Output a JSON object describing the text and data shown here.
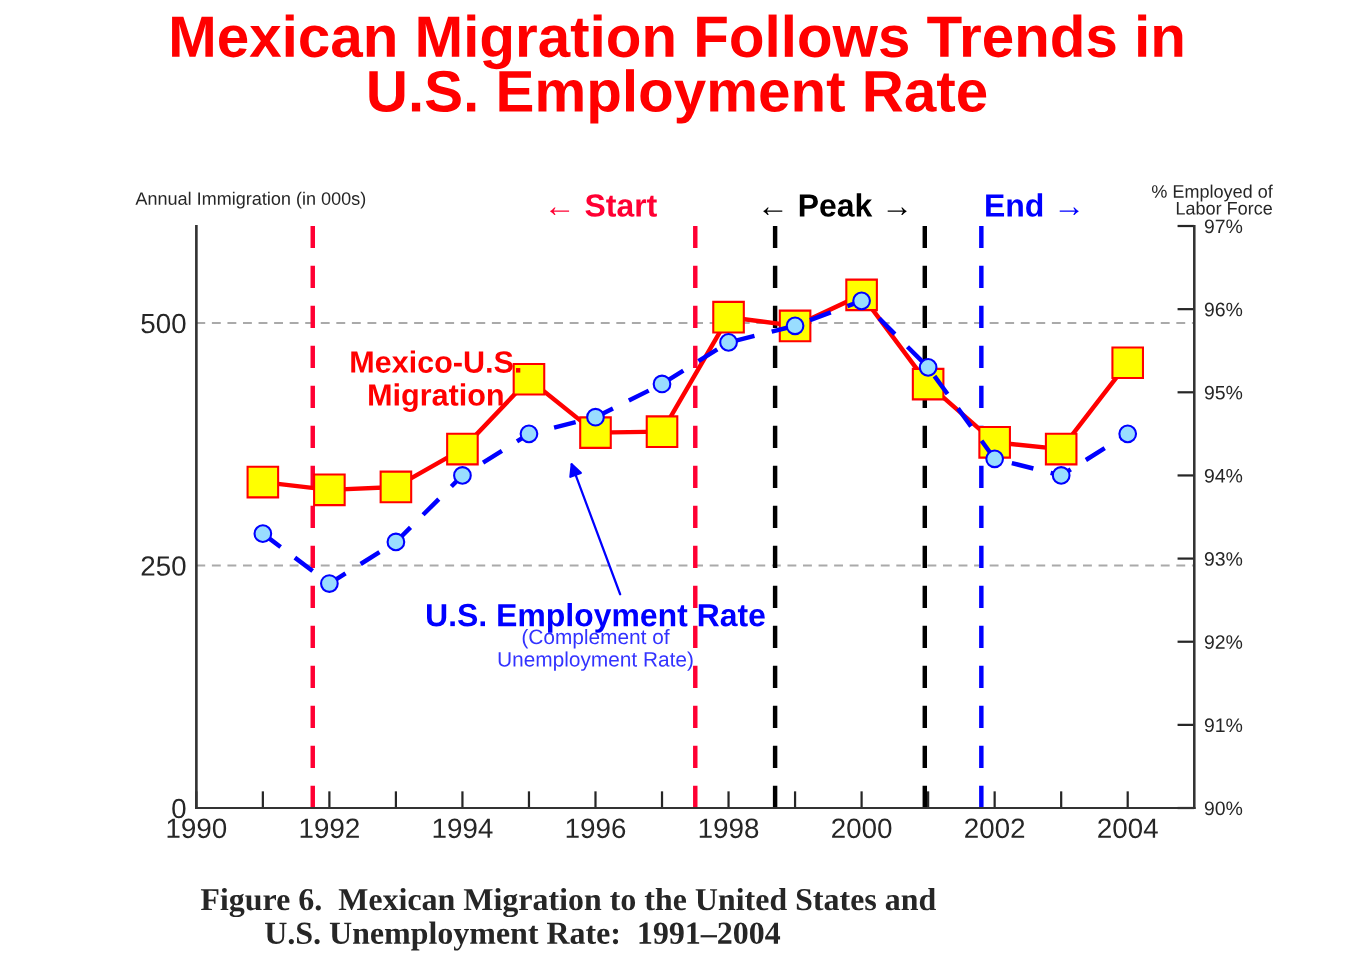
{
  "chart_data": {
    "type": "line",
    "title": "Mexican Migration Follows Trends in\nU.S. Employment Rate",
    "ylabel": "Annual Immigration (in 000s)",
    "y2label": "% Employed of\nLabor Force",
    "x": [
      1991,
      1992,
      1993,
      1994,
      1995,
      1996,
      1997,
      1998,
      1999,
      2000,
      2001,
      2002,
      2003,
      2004
    ],
    "series": [
      {
        "name": "Mexico-U.S.\nMigration",
        "color": "#ff0000",
        "marker": "square",
        "line_style": "solid",
        "values": [
          336,
          328,
          331,
          370,
          442,
          387,
          388,
          506,
          497,
          529,
          437,
          377,
          370,
          459
        ]
      },
      {
        "name": "U.S. Employment Rate",
        "color": "#0000ff",
        "marker": "circle",
        "line_style": "dashed",
        "axis": "y2",
        "values": [
          93.3,
          92.7,
          93.2,
          94.0,
          94.5,
          94.7,
          95.1,
          95.6,
          95.8,
          96.1,
          95.3,
          94.2,
          94.0,
          94.5
        ]
      }
    ],
    "xlim": [
      1990,
      2005
    ],
    "xticks": [
      1990,
      {
        "value": 1991,
        "label": null
      },
      1992,
      {
        "value": 1993,
        "label": null
      },
      1994,
      {
        "value": 1995,
        "label": null
      },
      1996,
      {
        "value": 1997,
        "label": null
      },
      1998,
      {
        "value": 1999,
        "label": null
      },
      2000,
      {
        "value": 2001,
        "label": null
      },
      2002,
      {
        "value": 2003,
        "label": null
      },
      2004
    ],
    "ylim": [
      0,
      600
    ],
    "yticks": [
      0,
      250,
      500
    ],
    "y2lim": [
      90,
      97
    ],
    "y2ticks": [
      {
        "value": 90,
        "label": "90%"
      },
      {
        "value": 91,
        "label": "91%"
      },
      {
        "value": 92,
        "label": "92%"
      },
      {
        "value": 93,
        "label": "93%"
      },
      {
        "value": 94,
        "label": "94%"
      },
      {
        "value": 95,
        "label": "95%"
      },
      {
        "value": 96,
        "label": "96%"
      },
      {
        "value": 97,
        "label": "97%"
      }
    ],
    "grid": "y",
    "ref_lines": [
      {
        "axis": "x",
        "value": 1991.75,
        "color": "#ff0033",
        "line_style": "dashed"
      },
      {
        "axis": "x",
        "value": 1997.5,
        "color": "#ff0033",
        "line_style": "dashed"
      },
      {
        "axis": "x",
        "value": 1998.7,
        "color": "#000000",
        "line_style": "dashed"
      },
      {
        "axis": "x",
        "value": 2000.95,
        "color": "#000000",
        "line_style": "dashed"
      },
      {
        "axis": "x",
        "value": 2001.8,
        "color": "#0000ff",
        "line_style": "dashed"
      }
    ],
    "annotations": [
      "← Start",
      "← Peak →",
      "End →",
      "(Complement of\nUnemployment Rate)",
      "Figure 6.  Mexican Migration to the United States and\n        U.S. Unemployment Rate:  1991–2004"
    ]
  }
}
